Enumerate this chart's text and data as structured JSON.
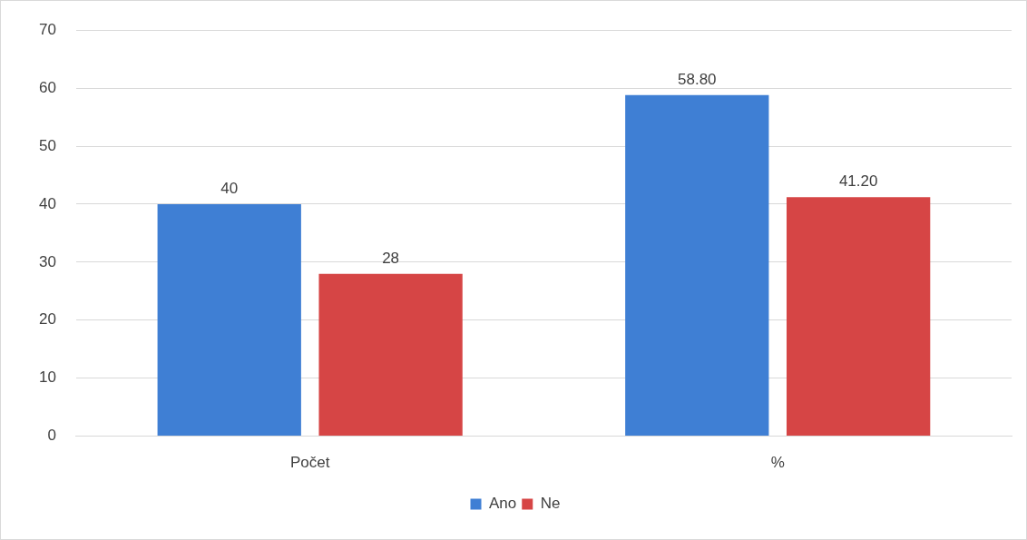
{
  "chart_data": {
    "type": "bar",
    "categories": [
      "Počet",
      "%"
    ],
    "series": [
      {
        "name": "Ano",
        "color": "#3f7fd4",
        "values": [
          40,
          58.8
        ],
        "value_labels": [
          "40",
          "58.80"
        ]
      },
      {
        "name": "Ne",
        "color": "#d64545",
        "values": [
          28,
          41.2
        ],
        "value_labels": [
          "28",
          "41.20"
        ]
      }
    ],
    "ylim": [
      0,
      70
    ],
    "yticks": [
      0,
      10,
      20,
      30,
      40,
      50,
      60,
      70
    ],
    "grid": "y",
    "legend": "bottom"
  }
}
